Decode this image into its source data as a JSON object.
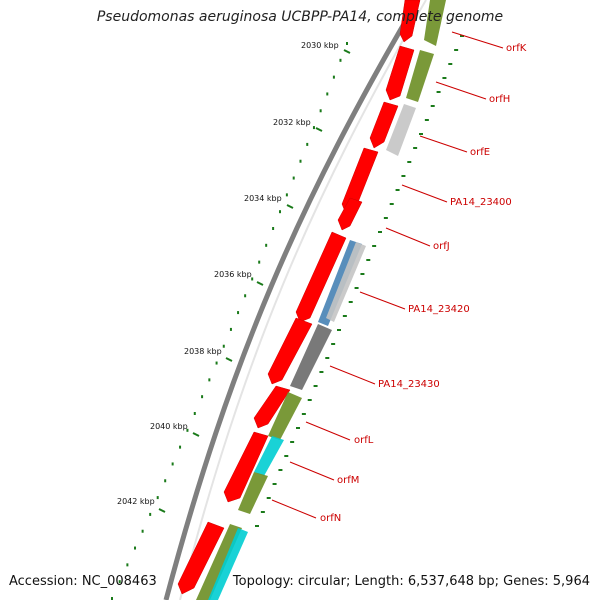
{
  "title": "Pseudomonas aeruginosa UCBPP-PA14, complete genome",
  "accession": "Accession: NC_008463",
  "summary": "Topology: circular; Length: 6,537,648 bp; Genes: 5,964",
  "colors": {
    "backbone": "#7f7f7f",
    "forward_gene": "#ff0000",
    "olive": "#6b8e23",
    "grey": "#c4c4c4",
    "dark_grey": "#6a6a6a",
    "steel_blue": "#4682b4",
    "cyan": "#00cdd2",
    "tick": "#1a7a1a",
    "label": "#cc0000"
  },
  "scale": {
    "unit": "kbp",
    "ticks": [
      {
        "label": "2030 kbp"
      },
      {
        "label": "2032 kbp"
      },
      {
        "label": "2034 kbp"
      },
      {
        "label": "2036 kbp"
      },
      {
        "label": "2038 kbp"
      },
      {
        "label": "2040 kbp"
      },
      {
        "label": "2042 kbp"
      }
    ]
  },
  "gene_labels": [
    "orfK",
    "orfH",
    "orfE",
    "PA14_23400",
    "orfJ",
    "PA14_23420",
    "PA14_23430",
    "orfL",
    "orfM",
    "orfN"
  ]
}
